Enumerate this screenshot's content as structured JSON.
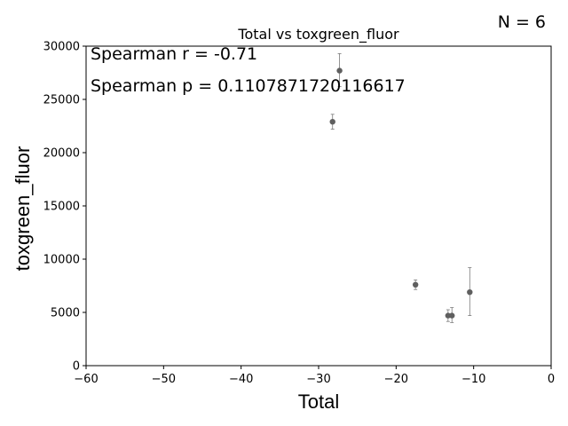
{
  "chart_data": {
    "type": "scatter",
    "title": "Total vs toxgreen_fluor",
    "xlabel": "Total",
    "ylabel": "toxgreen_fluor",
    "xlim": [
      -60,
      0
    ],
    "ylim": [
      0,
      30000
    ],
    "x_ticks": [
      "−60",
      "−50",
      "−40",
      "−30",
      "−20",
      "−10",
      "0"
    ],
    "y_ticks": [
      "0",
      "5000",
      "10000",
      "15000",
      "20000",
      "25000",
      "30000"
    ],
    "grid": false,
    "annotations": {
      "n_label": "N = 6",
      "spearman_r": "Spearman r = -0.71",
      "spearman_p": "Spearman p = 0.1107871720116617"
    },
    "points": [
      {
        "x": -28.2,
        "y": 22900,
        "err_low": 22200,
        "err_high": 23600
      },
      {
        "x": -27.3,
        "y": 27700,
        "err_low": 26200,
        "err_high": 29300
      },
      {
        "x": -17.5,
        "y": 7600,
        "err_low": 7150,
        "err_high": 8050
      },
      {
        "x": -13.3,
        "y": 4700,
        "err_low": 4150,
        "err_high": 5250
      },
      {
        "x": -12.8,
        "y": 4700,
        "err_low": 4050,
        "err_high": 5450
      },
      {
        "x": -10.5,
        "y": 6900,
        "err_low": 4700,
        "err_high": 9200
      }
    ],
    "colors": {
      "marker": "#5f5f5f",
      "errorbar": "#7a7a7a",
      "axis": "#000000"
    }
  }
}
